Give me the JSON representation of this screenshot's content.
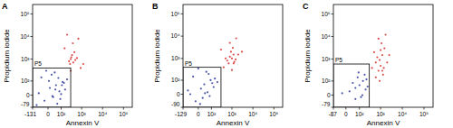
{
  "chart_data": [
    {
      "type": "scatter",
      "title": "A",
      "xlabel": "Annexin V",
      "ylabel": "Propidium iodide",
      "xlim": [
        -131,
        262144
      ],
      "ylim": [
        -79,
        262144
      ],
      "xticks": [
        -131,
        0,
        {
          "value": 100,
          "label": "10²"
        },
        {
          "value": 1000,
          "label": "10³"
        },
        {
          "value": 10000,
          "label": "10⁴"
        },
        {
          "value": 100000,
          "label": "10⁵"
        }
      ],
      "yticks": [
        -79,
        0,
        {
          "value": 100,
          "label": "10²"
        },
        {
          "value": 1000,
          "label": "10³"
        },
        {
          "value": 10000,
          "label": "10⁴"
        },
        {
          "value": 100000,
          "label": "10⁵"
        }
      ],
      "gate": {
        "label": "P5",
        "x": [
          -131,
          300
        ],
        "y": [
          -79,
          400
        ]
      },
      "series": [
        {
          "color": "#2e3b9c",
          "marker": "circle",
          "x": [
            -60,
            -20,
            10,
            30,
            50,
            80,
            120,
            160,
            -40,
            20,
            60,
            100,
            5,
            40,
            90,
            140,
            -80,
            25,
            70,
            110,
            200,
            -10,
            45
          ],
          "values": [
            10,
            -30,
            40,
            -10,
            60,
            20,
            90,
            30,
            150,
            200,
            -50,
            5,
            100,
            250,
            -20,
            80,
            -60,
            -5,
            140,
            60,
            120,
            300,
            30
          ]
        },
        {
          "color": "#d2312f",
          "marker": "circle",
          "x": [
            250,
            300,
            400,
            350,
            500,
            280,
            320,
            450,
            600,
            380,
            150,
            900,
            300,
            700,
            1200,
            200
          ],
          "values": [
            800,
            1000,
            700,
            1500,
            900,
            600,
            1200,
            2000,
            1100,
            5000,
            3000,
            400,
            300,
            8000,
            600,
            12000
          ]
        }
      ]
    },
    {
      "type": "scatter",
      "title": "B",
      "xlabel": "Annexin V",
      "ylabel": "Propidium iodide",
      "xlim": [
        -129,
        262144
      ],
      "ylim": [
        -90,
        262144
      ],
      "xticks": [
        -129,
        0,
        {
          "value": 100,
          "label": "10²"
        },
        {
          "value": 1000,
          "label": "10³"
        },
        {
          "value": 10000,
          "label": "10⁴"
        },
        {
          "value": 100000,
          "label": "10⁵"
        }
      ],
      "yticks": [
        -90,
        0,
        {
          "value": 100,
          "label": "10²"
        },
        {
          "value": 1000,
          "label": "10³"
        },
        {
          "value": 10000,
          "label": "10⁴"
        },
        {
          "value": 100000,
          "label": "10⁵"
        }
      ],
      "gate": {
        "label": "P5",
        "x": [
          -129,
          300
        ],
        "y": [
          -90,
          400
        ]
      },
      "series": [
        {
          "color": "#2e3b9c",
          "marker": "circle",
          "x": [
            -50,
            -15,
            15,
            35,
            60,
            90,
            130,
            -30,
            25,
            70,
            110,
            10,
            50,
            150,
            -70,
            80,
            200,
            0,
            40
          ],
          "values": [
            0,
            -40,
            30,
            60,
            10,
            100,
            40,
            150,
            -20,
            200,
            70,
            -60,
            250,
            120,
            20,
            -10,
            80,
            350,
            5
          ]
        },
        {
          "color": "#d2312f",
          "marker": "circle",
          "x": [
            600,
            800,
            1000,
            1200,
            900,
            700,
            1500,
            1100,
            1300,
            400,
            2000,
            800,
            1000,
            300,
            3000,
            1600,
            500,
            1200
          ],
          "values": [
            800,
            1200,
            1000,
            1500,
            2000,
            600,
            900,
            3000,
            700,
            400,
            1500,
            5000,
            300,
            2500,
            2000,
            8000,
            1000,
            600
          ]
        }
      ]
    },
    {
      "type": "scatter",
      "title": "C",
      "xlabel": "Annexin V",
      "ylabel": "Propidium iodide",
      "xlim": [
        -87,
        262144
      ],
      "ylim": [
        -79,
        262144
      ],
      "xticks": [
        -87,
        0,
        {
          "value": 100,
          "label": "10²"
        },
        {
          "value": 1000,
          "label": "10³"
        },
        {
          "value": 10000,
          "label": "10⁴"
        },
        {
          "value": 100000,
          "label": "10⁵"
        }
      ],
      "yticks": [
        -79,
        0,
        {
          "value": 100,
          "label": "10²"
        },
        {
          "value": 1000,
          "label": "10³"
        },
        {
          "value": 10000,
          "label": "10⁴"
        },
        {
          "value": 100000,
          "label": "10⁵"
        }
      ],
      "gate": {
        "label": "P5",
        "x": [
          -87,
          300
        ],
        "y": [
          -79,
          600
        ]
      },
      "series": [
        {
          "color": "#2e3b9c",
          "marker": "circle",
          "x": [
            20,
            60,
            100,
            150,
            200,
            80,
            120,
            40,
            180,
            250,
            -20,
            90,
            140,
            60,
            220
          ],
          "values": [
            20,
            -20,
            60,
            100,
            30,
            150,
            -10,
            80,
            200,
            50,
            10,
            250,
            0,
            40,
            120
          ]
        },
        {
          "color": "#d2312f",
          "marker": "circle",
          "x": [
            600,
            800,
            1000,
            1300,
            900,
            1200,
            700,
            1500,
            2000,
            1100,
            500,
            900,
            1400,
            800,
            1000,
            2500,
            1700,
            600,
            400,
            1200
          ],
          "values": [
            150,
            300,
            500,
            200,
            900,
            1500,
            1200,
            3000,
            700,
            5000,
            2000,
            100,
            400,
            8000,
            2500,
            1500,
            12000,
            700,
            400,
            300
          ]
        }
      ]
    }
  ]
}
